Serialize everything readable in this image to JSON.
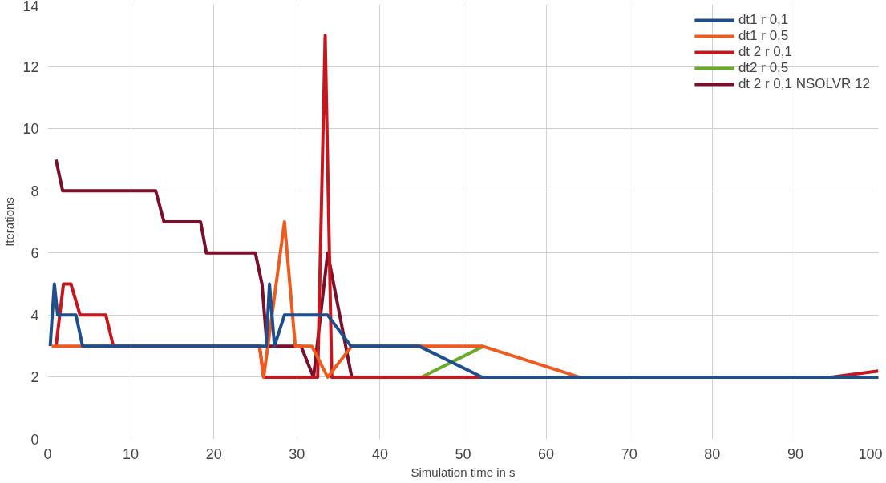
{
  "chart_data": {
    "type": "line",
    "xlabel": "Simulation time in s",
    "ylabel": "Iterations",
    "xlim": [
      0,
      100
    ],
    "ylim": [
      0,
      14
    ],
    "xticks": [
      0,
      10,
      20,
      30,
      40,
      50,
      60,
      70,
      80,
      90,
      100
    ],
    "yticks": [
      0,
      2,
      4,
      6,
      8,
      10,
      12,
      14
    ],
    "grid": true,
    "legend": "top right",
    "marker": "none",
    "line_style": "solid",
    "series": [
      {
        "name": "dt1 r 0,1",
        "color": "#1f4e8c",
        "x": [
          0.3,
          0.8,
          1.2,
          3.4,
          4.2,
          26.3,
          26.7,
          27.3,
          28.5,
          33.7,
          36.5,
          44.7,
          52.3,
          100
        ],
        "values": [
          3,
          5,
          4,
          4,
          3,
          3,
          5,
          3,
          4,
          4,
          3,
          3,
          2,
          2
        ]
      },
      {
        "name": "dt1 r 0,5",
        "color": "#f05a1e",
        "x": [
          0.5,
          25.5,
          26,
          28.5,
          29.8,
          31.8,
          33.7,
          36.6,
          52.3,
          64,
          100
        ],
        "values": [
          3,
          3,
          2,
          7,
          3,
          3,
          2,
          3,
          3,
          2,
          2
        ]
      },
      {
        "name": "dt 2 r 0,1",
        "color": "#c8161e",
        "x": [
          1,
          1.9,
          2.8,
          3.9,
          7,
          7.9,
          25.5,
          26,
          32.5,
          33.4,
          34.2,
          94.3,
          100
        ],
        "values": [
          3,
          5,
          5,
          4,
          4,
          3,
          3,
          2,
          2,
          13,
          2,
          2,
          2.2
        ]
      },
      {
        "name": "dt2 r 0,5",
        "color": "#6aaa2a",
        "x": [
          45,
          52.5
        ],
        "values": [
          2,
          3
        ]
      },
      {
        "name": "dt 2 r 0,1 NSOLVR 12",
        "color": "#7a0f2a",
        "x": [
          1,
          1.8,
          13,
          14,
          18.4,
          19.1,
          25,
          25.8,
          26.4,
          30.5,
          32,
          33.7,
          36.6,
          100
        ],
        "values": [
          9,
          8,
          8,
          7,
          7,
          6,
          6,
          5,
          3,
          3,
          2,
          6,
          2,
          2
        ]
      }
    ]
  }
}
